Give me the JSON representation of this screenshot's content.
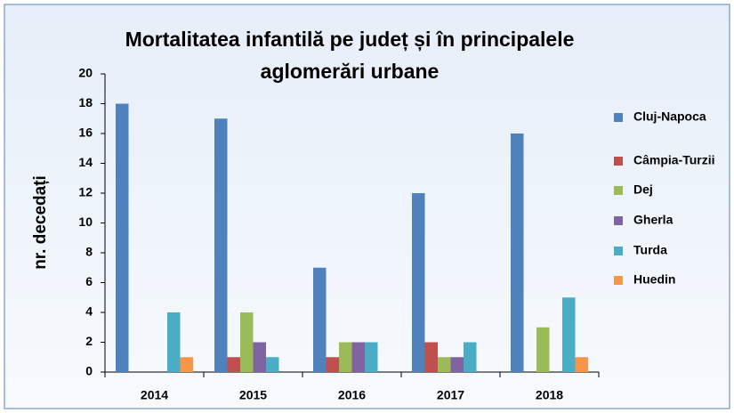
{
  "chart_data": {
    "type": "bar",
    "title": [
      "Mortalitatea infantilă pe județ și în principalele",
      "aglomerări urbane"
    ],
    "y_label": "nr. decedați",
    "categories": [
      "2014",
      "2015",
      "2016",
      "2017",
      "2018"
    ],
    "series": [
      {
        "name": "Cluj-Napoca",
        "color": "#4f81bd",
        "values": [
          18,
          17,
          7,
          12,
          16
        ]
      },
      {
        "name": "Câmpia-Turzii",
        "color": "#c0504d",
        "values": [
          0,
          1,
          1,
          2,
          0
        ]
      },
      {
        "name": "Dej",
        "color": "#9bbb59",
        "values": [
          0,
          4,
          2,
          1,
          3
        ]
      },
      {
        "name": "Gherla",
        "color": "#8064a2",
        "values": [
          0,
          2,
          2,
          1,
          0
        ]
      },
      {
        "name": "Turda",
        "color": "#4bacc6",
        "values": [
          4,
          1,
          2,
          2,
          5
        ]
      },
      {
        "name": "Huedin",
        "color": "#f79646",
        "values": [
          1,
          0,
          0,
          0,
          1
        ]
      }
    ],
    "ylim": [
      0,
      20
    ],
    "yticks": [
      0,
      2,
      4,
      6,
      8,
      10,
      12,
      14,
      16,
      18,
      20
    ],
    "legend": "right"
  }
}
